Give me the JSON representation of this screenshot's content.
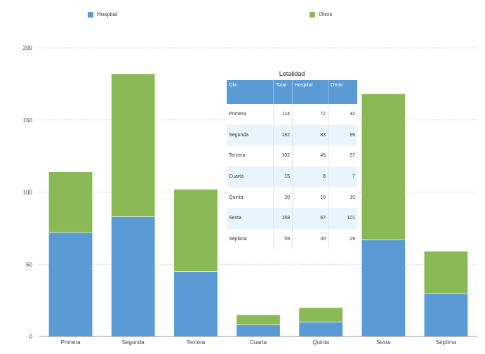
{
  "colors": {
    "hospital": "#5b9bd5",
    "otros": "#8ab955",
    "grid": "#c8c8c8",
    "axis": "#999999"
  },
  "chart_data": {
    "type": "bar",
    "stacked": true,
    "categories": [
      "Primera",
      "Segunda",
      "Tercera",
      "Cuarta",
      "Quinta",
      "Sexta",
      "Séptima"
    ],
    "series": [
      {
        "name": "Hospital",
        "values": [
          72,
          83,
          45,
          8,
          10,
          67,
          30
        ]
      },
      {
        "name": "Otros",
        "values": [
          42,
          99,
          57,
          7,
          10,
          101,
          29
        ]
      }
    ],
    "ylim": [
      0,
      200
    ],
    "yticks": [
      0,
      50,
      100,
      150,
      200
    ],
    "grid": true,
    "legend": "top"
  },
  "table": {
    "title": "Letalidad",
    "headers": [
      "Ola",
      "Total",
      "Hospital",
      "Otros"
    ],
    "rows": [
      [
        "Primera",
        "114",
        "72",
        "42"
      ],
      [
        "Segunda",
        "182",
        "83",
        "99"
      ],
      [
        "Tercera",
        "102",
        "45",
        "57"
      ],
      [
        "Cuarta",
        "15",
        "8",
        "7"
      ],
      [
        "Quinta",
        "20",
        "10",
        "10"
      ],
      [
        "Sexta",
        "168",
        "67",
        "101"
      ],
      [
        "Séptima",
        "59",
        "30",
        "29"
      ]
    ]
  }
}
